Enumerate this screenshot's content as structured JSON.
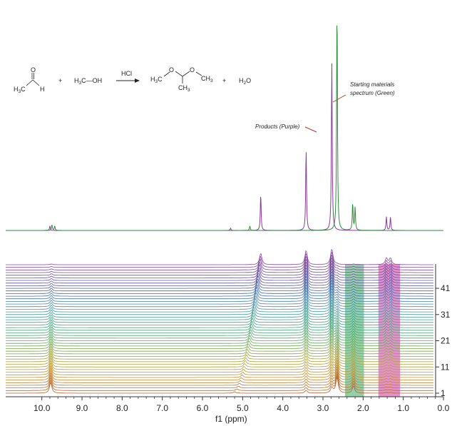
{
  "scheme": {
    "reactant1": {
      "h3c": "H",
      "h3c_sub": "3",
      "h3c_c": "C",
      "o": "O",
      "h": "H"
    },
    "plus1": "+",
    "reactant2": "H3C—OH",
    "reactant2_parts": {
      "h": "H",
      "sub": "3",
      "rest": "C—OH"
    },
    "catalyst": "HCl",
    "product_parts": {
      "h3c_left": "H",
      "sub_left": "3",
      "c_left": "C",
      "o_left": "O",
      "o_right": "O",
      "ch3_c": "CH",
      "ch3_sub": "3",
      "ch3_right_c": "CH",
      "ch3_right_sub": "3"
    },
    "plus2": "+",
    "water": {
      "h": "H",
      "sub": "2",
      "o": "O"
    }
  },
  "annotations": {
    "starting_line1": "Starting materials",
    "starting_line2": "spectrum (Green)",
    "products": "Products (Purple)"
  },
  "colors": {
    "purple": "#8a3b9a",
    "green": "#2e8b3a",
    "green_band": "#3aa860",
    "magenta_band": "#cc3aa0",
    "axis": "#333333"
  },
  "chart_data": [
    {
      "type": "line",
      "name": "overlay-spectra",
      "x_reversed": true,
      "xlim": [
        10.9,
        0.0
      ],
      "series": [
        {
          "color": "#8a3b9a",
          "peaks": [
            {
              "ppm": 9.8,
              "height": 0.02
            },
            {
              "ppm": 5.3,
              "height": 0.01
            },
            {
              "ppm": 4.55,
              "height": 0.16
            },
            {
              "ppm": 3.42,
              "height": 0.36
            },
            {
              "ppm": 2.78,
              "height": 0.75
            },
            {
              "ppm": 1.42,
              "height": 0.06
            },
            {
              "ppm": 1.32,
              "height": 0.06
            }
          ]
        },
        {
          "color": "#2e8b3a",
          "peaks": [
            {
              "ppm": 9.75,
              "height": 0.025
            },
            {
              "ppm": 9.68,
              "height": 0.02
            },
            {
              "ppm": 4.82,
              "height": 0.02
            },
            {
              "ppm": 2.65,
              "height": 1.0
            },
            {
              "ppm": 2.26,
              "height": 0.12
            },
            {
              "ppm": 2.2,
              "height": 0.1
            }
          ]
        }
      ]
    },
    {
      "type": "line",
      "name": "stacked-spectra",
      "x_reversed": true,
      "xlim": [
        10.9,
        0.0
      ],
      "xticks": [
        "10.0",
        "9.0",
        "8.0",
        "7.0",
        "6.0",
        "5.0",
        "4.0",
        "3.0",
        "2.0",
        "1.0",
        "0.0"
      ],
      "xtick_values": [
        10.0,
        9.0,
        8.0,
        7.0,
        6.0,
        5.0,
        4.0,
        3.0,
        2.0,
        1.0,
        0.0
      ],
      "xlabel": "f1 (ppm)",
      "trace_count": 50,
      "yticks": [
        "1",
        "11",
        "21",
        "31",
        "41"
      ],
      "ytick_values": [
        1,
        11,
        21,
        31,
        41
      ],
      "highlight_bands": [
        {
          "from_ppm": 2.45,
          "to_ppm": 1.98,
          "color": "#3aa860"
        },
        {
          "from_ppm": 1.62,
          "to_ppm": 1.08,
          "color": "#cc3aa0"
        }
      ]
    }
  ]
}
